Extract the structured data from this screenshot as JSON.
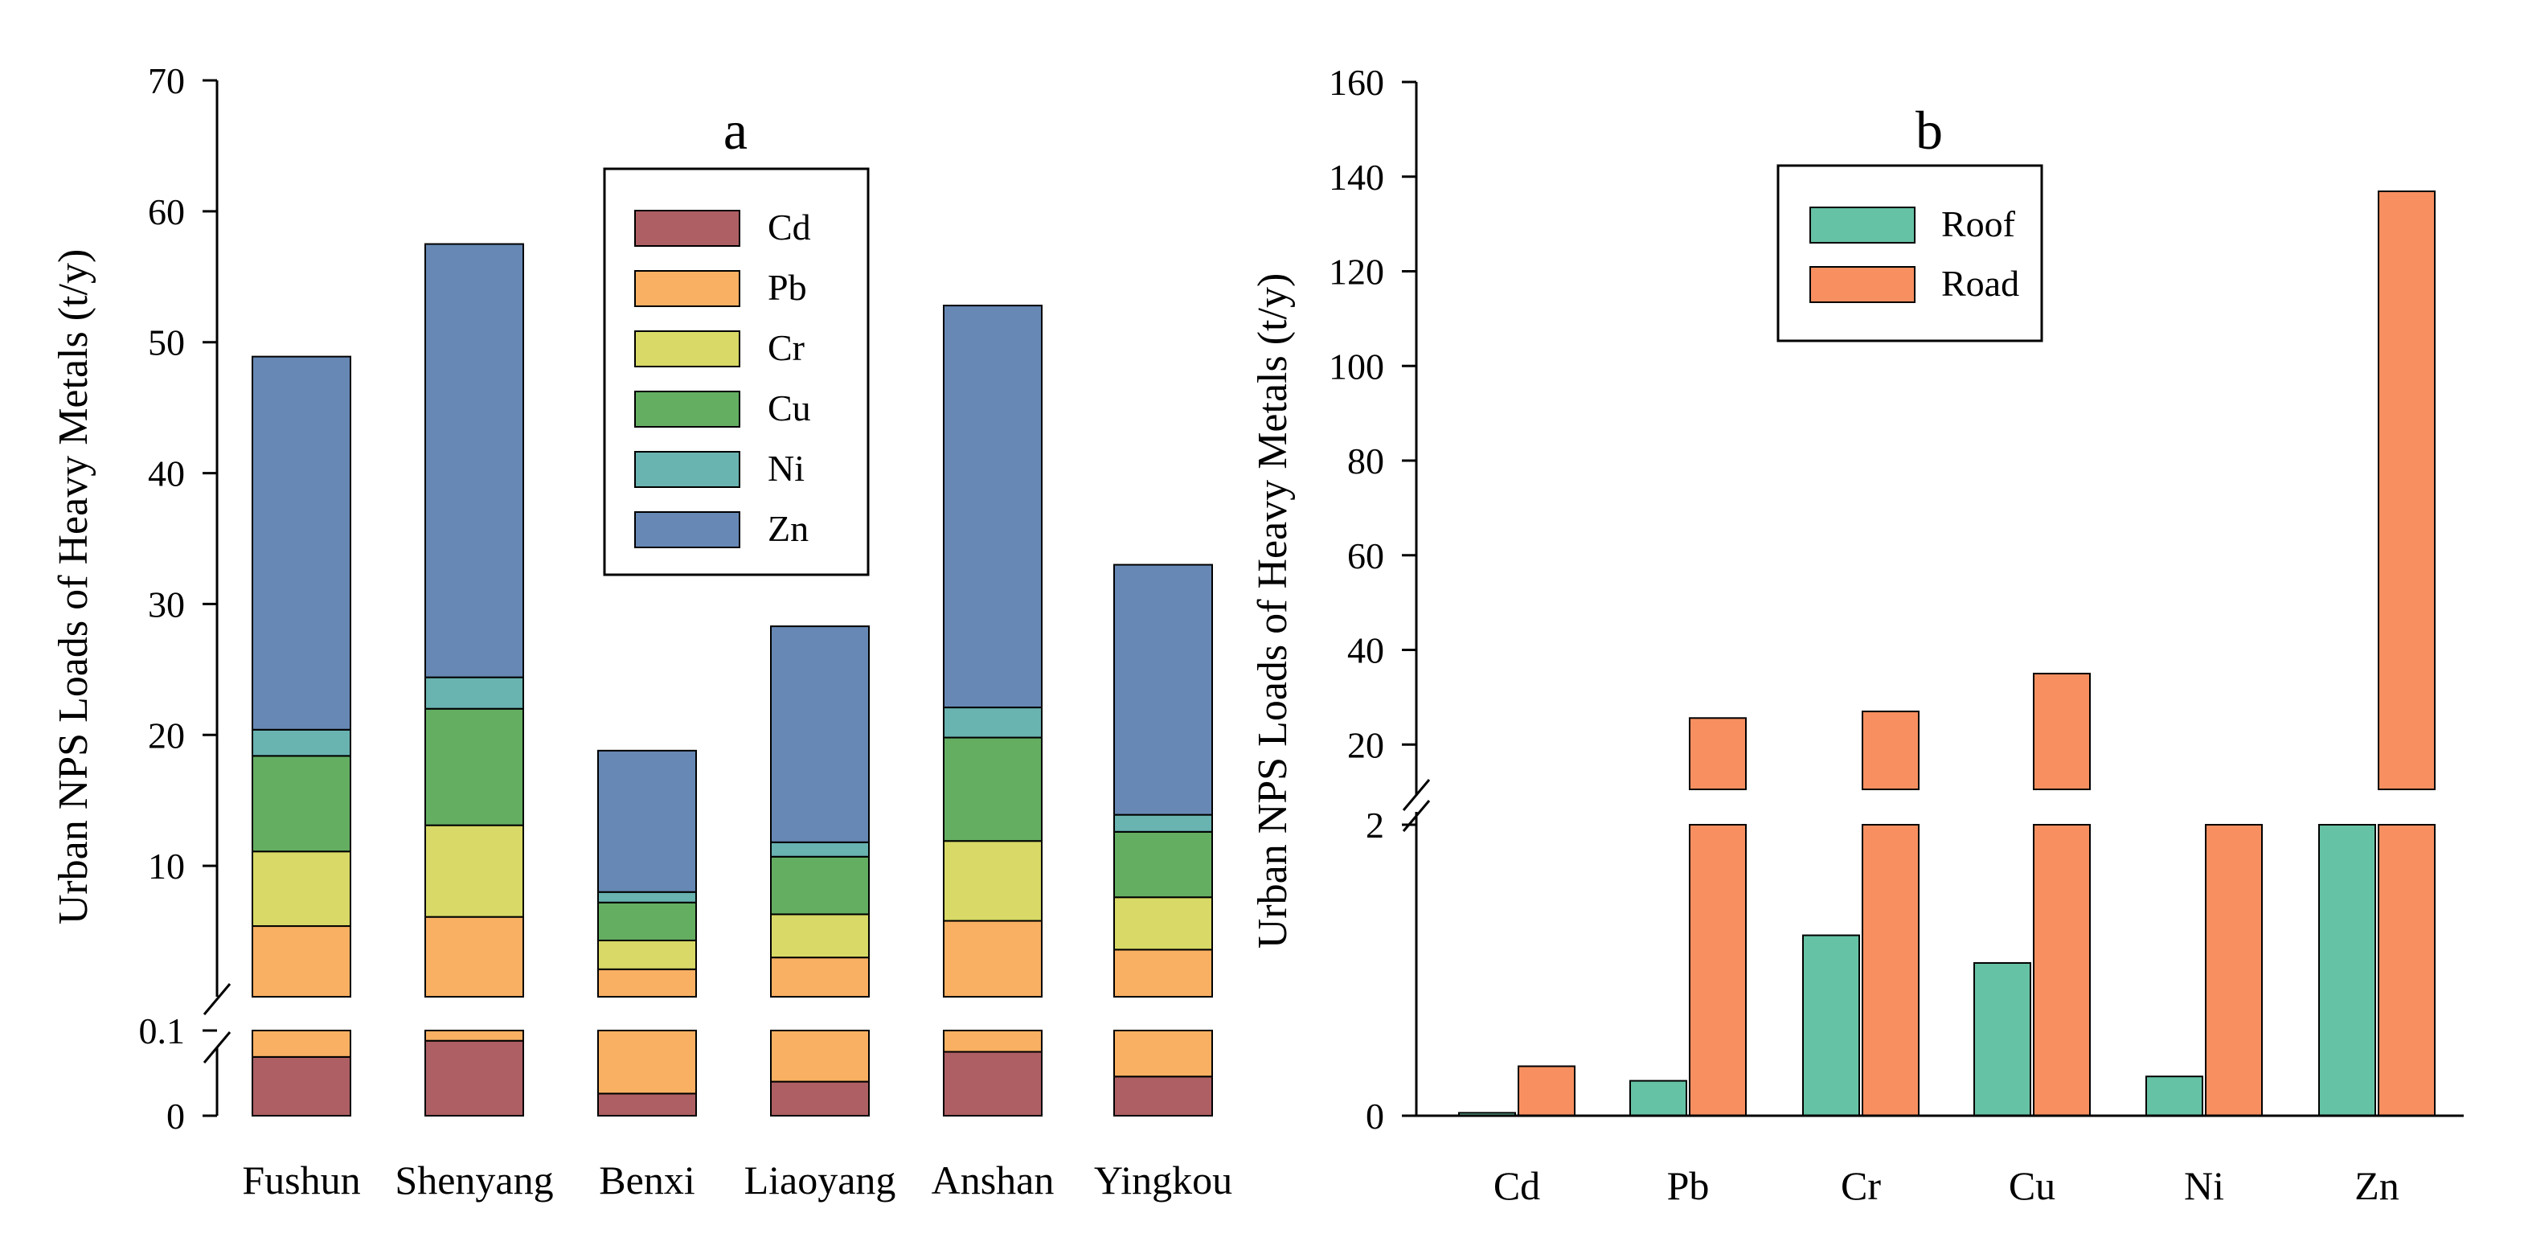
{
  "chart_data": [
    {
      "panel": "a",
      "type": "bar",
      "stacked": true,
      "title": "a",
      "ylabel": "Urban  NPS Loads of Heavy Metals (t/y)",
      "axis_break": {
        "lower_range": [
          0,
          0.1
        ],
        "upper_range": [
          0,
          70
        ]
      },
      "lower_ticks": [
        "0",
        "0.1"
      ],
      "upper_ticks": [
        "10",
        "20",
        "30",
        "40",
        "50",
        "60",
        "70"
      ],
      "categories": [
        "Fushun",
        "Shenyang",
        "Benxi",
        "Liaoyang",
        "Anshan",
        "Yingkou"
      ],
      "legend_position": "top-right",
      "lower_segment": {
        "series": [
          {
            "name": "Cd",
            "values": [
              0.069,
              0.088,
              0.026,
              0.04,
              0.075,
              0.046
            ]
          },
          {
            "name": "Pb",
            "values": [
              0.031,
              0.012,
              0.074,
              0.06,
              0.025,
              0.054
            ]
          }
        ]
      },
      "upper_segment": {
        "series": [
          {
            "name": "Pb",
            "values": [
              5.4,
              6.1,
              2.1,
              3.0,
              5.8,
              3.6
            ]
          },
          {
            "name": "Cr",
            "values": [
              5.7,
              7.0,
              2.2,
              3.3,
              6.1,
              4.0
            ]
          },
          {
            "name": "Cu",
            "values": [
              7.3,
              8.9,
              2.9,
              4.4,
              7.9,
              5.0
            ]
          },
          {
            "name": "Ni",
            "values": [
              2.0,
              2.4,
              0.8,
              1.1,
              2.3,
              1.3
            ]
          },
          {
            "name": "Zn",
            "values": [
              28.5,
              33.1,
              10.8,
              16.5,
              30.7,
              19.1
            ]
          }
        ]
      },
      "colors": {
        "Cd": "#ae5f63",
        "Pb": "#f9b062",
        "Cr": "#d8d966",
        "Cu": "#64ae62",
        "Ni": "#69b3b1",
        "Zn": "#6788b4"
      }
    },
    {
      "panel": "b",
      "type": "bar",
      "title": "b",
      "ylabel": "Urban NPS Loads of Heavy Metals  (t/y)",
      "axis_break": {
        "lower_range": [
          0,
          2
        ],
        "upper_range": [
          0,
          160
        ]
      },
      "lower_ticks": [
        "0",
        "2"
      ],
      "upper_ticks": [
        "20",
        "40",
        "60",
        "80",
        "100",
        "120",
        "140",
        "160"
      ],
      "categories": [
        "Cd",
        "Pb",
        "Cr",
        "Cu",
        "Ni",
        "Zn"
      ],
      "legend_position": "top-left",
      "series": [
        {
          "name": "Roof",
          "values": [
            0.02,
            0.24,
            1.24,
            1.05,
            0.27,
            2.96
          ]
        },
        {
          "name": "Road",
          "values": [
            0.34,
            25.6,
            27.0,
            35.0,
            9.9,
            136.9
          ]
        }
      ],
      "colors": {
        "Roof": "#66c2a5",
        "Road": "#f78f60"
      }
    }
  ]
}
